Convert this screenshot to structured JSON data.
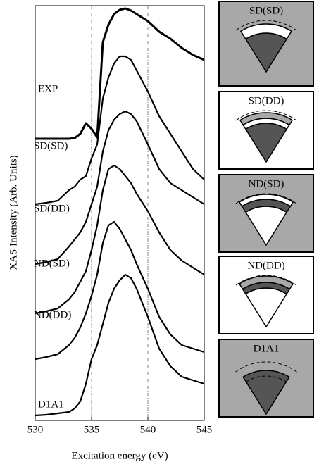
{
  "chart_data": {
    "type": "line",
    "xlabel": "Excitation energy (eV)",
    "ylabel": "XAS Intensity (Arb. Units)",
    "x": [
      530,
      531,
      532,
      533,
      533.5,
      534,
      534.5,
      535,
      535.5,
      536,
      536.5,
      537,
      537.5,
      538,
      538.5,
      539,
      540,
      541,
      542,
      543,
      544,
      545
    ],
    "series": [
      {
        "name": "EXP",
        "color": "#000000",
        "values": [
          400,
          400,
          400,
          400,
          401,
          407,
          422,
          414,
          402,
          537,
          562,
          577,
          583,
          585,
          582,
          577,
          567,
          552,
          542,
          529,
          519,
          512
        ]
      },
      {
        "name": "SD(SD)",
        "color": "#000000",
        "values": [
          307,
          309,
          312,
          327,
          332,
          342,
          347,
          372,
          392,
          457,
          487,
          507,
          517,
          517,
          512,
          497,
          467,
          432,
          407,
          382,
          357,
          342
        ]
      },
      {
        "name": "SD(DD)",
        "color": "#000000",
        "values": [
          222,
          225,
          229,
          247,
          257,
          267,
          282,
          307,
          332,
          382,
          412,
          427,
          435,
          439,
          435,
          425,
          392,
          357,
          337,
          327,
          317,
          307
        ]
      },
      {
        "name": "ND(SD)",
        "color": "#000000",
        "values": [
          152,
          155,
          159,
          172,
          182,
          197,
          212,
          242,
          277,
          327,
          357,
          362,
          357,
          347,
          337,
          322,
          297,
          267,
          242,
          227,
          217,
          207
        ]
      },
      {
        "name": "ND(DD)",
        "color": "#000000",
        "values": [
          87,
          90,
          94,
          107,
          117,
          132,
          152,
          177,
          207,
          252,
          277,
          282,
          272,
          257,
          242,
          222,
          187,
          147,
          122,
          107,
          102,
          97
        ]
      },
      {
        "name": "D1A1",
        "color": "#000000",
        "values": [
          7,
          8,
          10,
          12,
          17,
          27,
          52,
          87,
          107,
          137,
          167,
          187,
          199,
          207,
          202,
          187,
          147,
          102,
          77,
          62,
          57,
          52
        ]
      }
    ],
    "xlim": [
      530,
      545
    ],
    "xticks": [
      530,
      535,
      540,
      545
    ],
    "ylim": [
      0,
      589
    ],
    "vlines": [
      535,
      540
    ],
    "panels": [
      {
        "label": "SD(SD)"
      },
      {
        "label": "SD(DD)"
      },
      {
        "label": "ND(SD)"
      },
      {
        "label": "ND(DD)"
      },
      {
        "label": "D1A1"
      }
    ]
  }
}
